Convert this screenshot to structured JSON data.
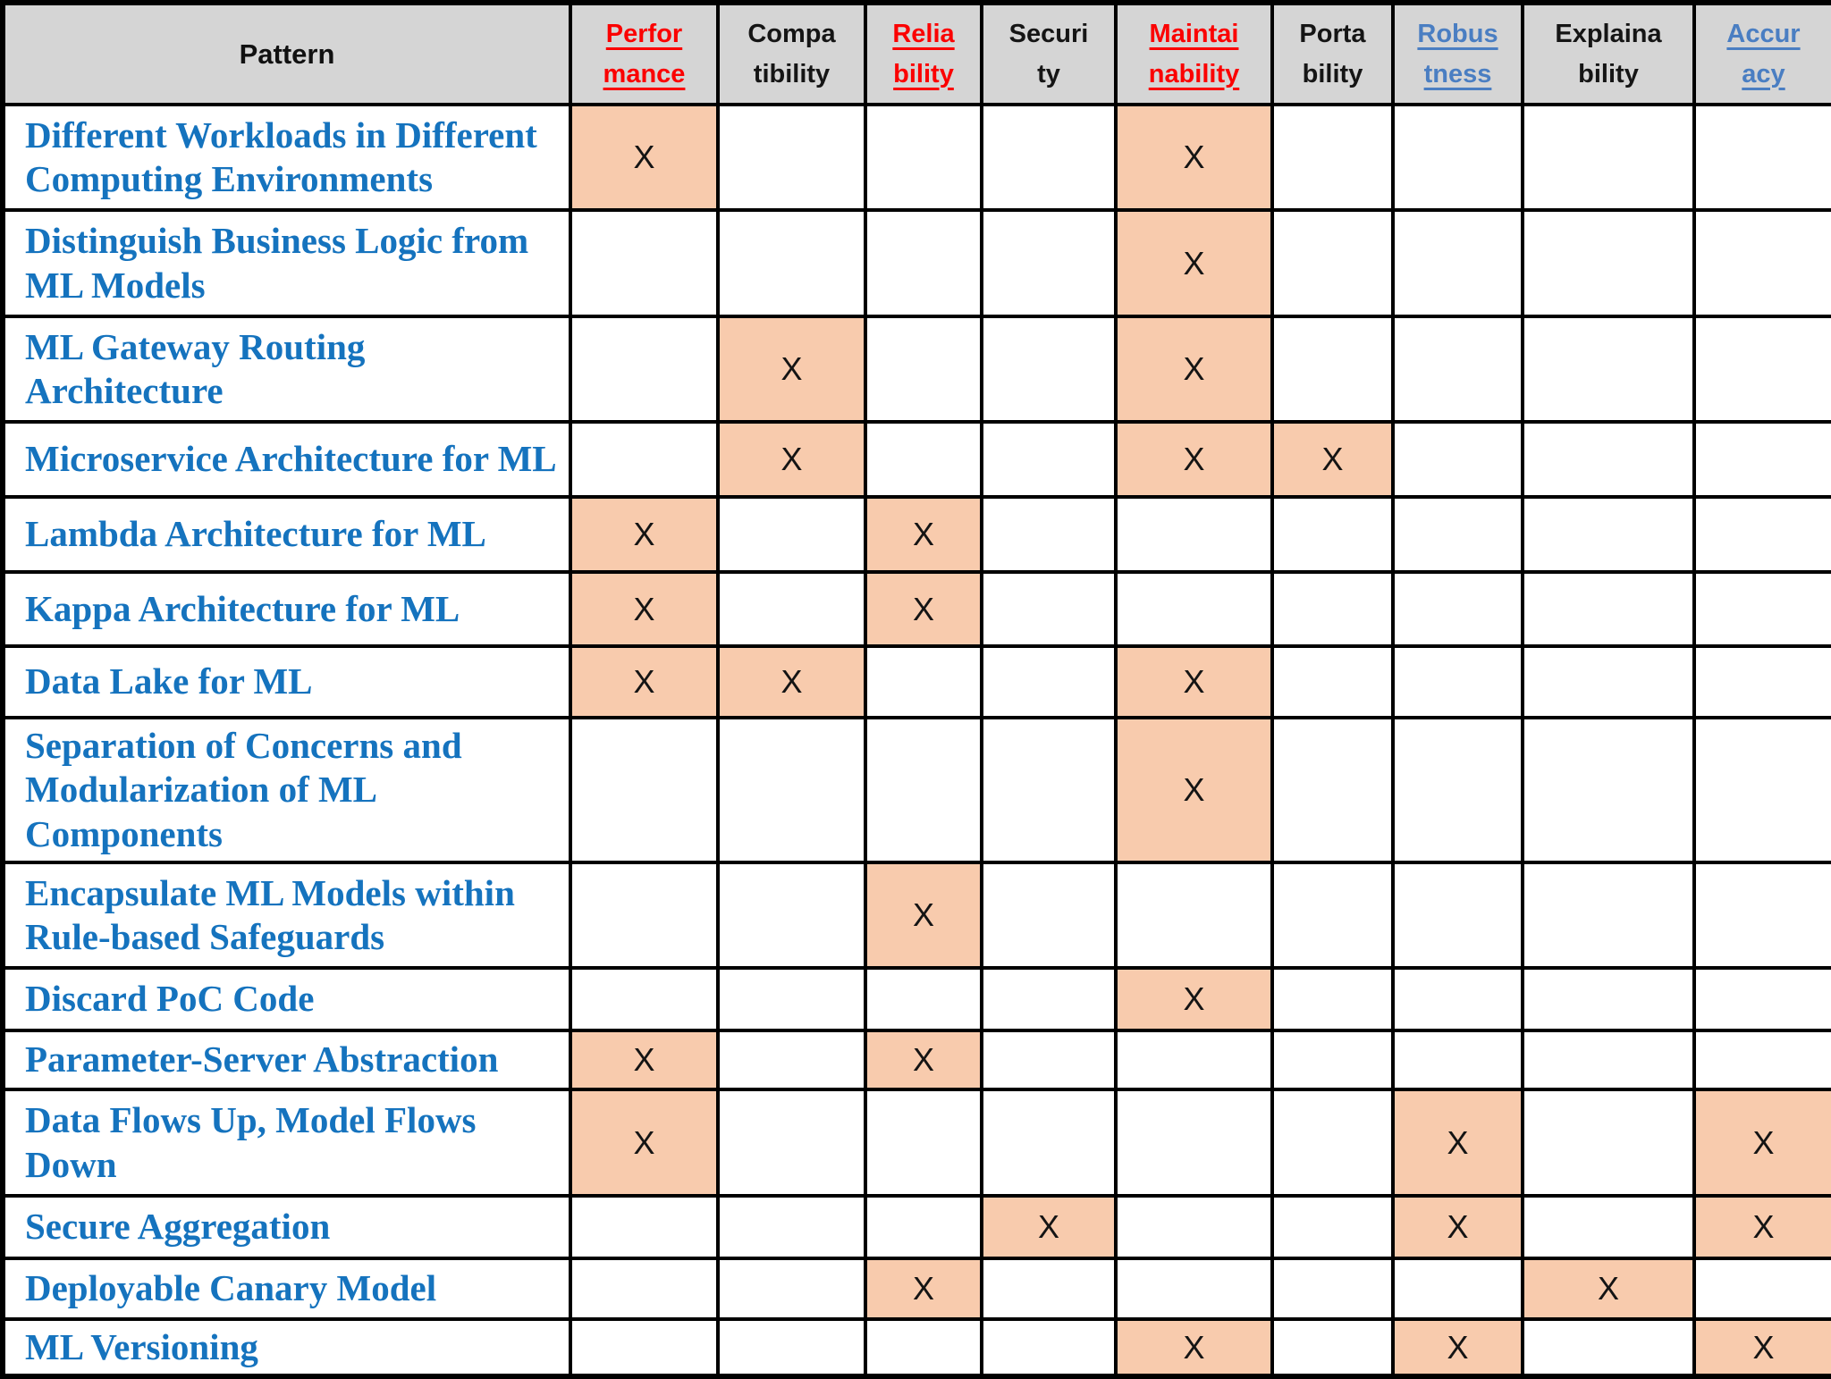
{
  "table": {
    "pattern_header": "Pattern",
    "mark_symbol": "X",
    "columns": [
      {
        "key": "performance",
        "label": "Perfor\nmance",
        "style": "red-underline"
      },
      {
        "key": "compatibility",
        "label": "Compa\ntibility",
        "style": "black"
      },
      {
        "key": "reliability",
        "label": "Relia\nbility",
        "style": "red-underline"
      },
      {
        "key": "security",
        "label": "Securi\nty",
        "style": "black"
      },
      {
        "key": "maintainability",
        "label": "Maintai\nnability",
        "style": "red-underline"
      },
      {
        "key": "portability",
        "label": "Porta\nbility",
        "style": "black"
      },
      {
        "key": "robustness",
        "label": "Robus\ntness",
        "style": "blue-underline"
      },
      {
        "key": "explainability",
        "label": "Explaina\nbility",
        "style": "black"
      },
      {
        "key": "accuracy",
        "label": "Accur\nacy",
        "style": "blue-underline"
      }
    ],
    "rows": [
      {
        "pattern": "Different Workloads in Different\nComputing Environments",
        "marks": [
          "performance",
          "maintainability"
        ]
      },
      {
        "pattern": "Distinguish Business Logic from\nML Models",
        "marks": [
          "maintainability"
        ]
      },
      {
        "pattern": "ML Gateway Routing\nArchitecture",
        "marks": [
          "compatibility",
          "maintainability"
        ]
      },
      {
        "pattern": "Microservice Architecture for ML",
        "marks": [
          "compatibility",
          "maintainability",
          "portability"
        ]
      },
      {
        "pattern": "Lambda Architecture for ML",
        "marks": [
          "performance",
          "reliability"
        ]
      },
      {
        "pattern": "Kappa Architecture for ML",
        "marks": [
          "performance",
          "reliability"
        ]
      },
      {
        "pattern": "Data Lake for ML",
        "marks": [
          "performance",
          "compatibility",
          "maintainability"
        ]
      },
      {
        "pattern": "Separation of Concerns and\nModularization of ML\nComponents",
        "marks": [
          "maintainability"
        ]
      },
      {
        "pattern": "Encapsulate ML Models within\nRule-based Safeguards",
        "marks": [
          "reliability"
        ]
      },
      {
        "pattern": "Discard PoC Code",
        "marks": [
          "maintainability"
        ]
      },
      {
        "pattern": "Parameter-Server Abstraction",
        "marks": [
          "performance",
          "reliability"
        ]
      },
      {
        "pattern": "Data Flows Up, Model Flows\nDown",
        "marks": [
          "performance",
          "robustness",
          "accuracy"
        ]
      },
      {
        "pattern": "Secure Aggregation",
        "marks": [
          "security",
          "robustness",
          "accuracy"
        ]
      },
      {
        "pattern": "Deployable Canary Model",
        "marks": [
          "reliability",
          "explainability"
        ]
      },
      {
        "pattern": "ML Versioning",
        "marks": [
          "maintainability",
          "robustness",
          "accuracy"
        ]
      }
    ],
    "colors": {
      "header_bg": "#d5d5d5",
      "mark_bg": "#f8cbad",
      "header_red": "#fb0000",
      "header_blue": "#4a7ec2",
      "pattern_blue": "#1573be",
      "grid": "#000000",
      "mark_color": "#141414",
      "header_black": "#151515"
    }
  }
}
